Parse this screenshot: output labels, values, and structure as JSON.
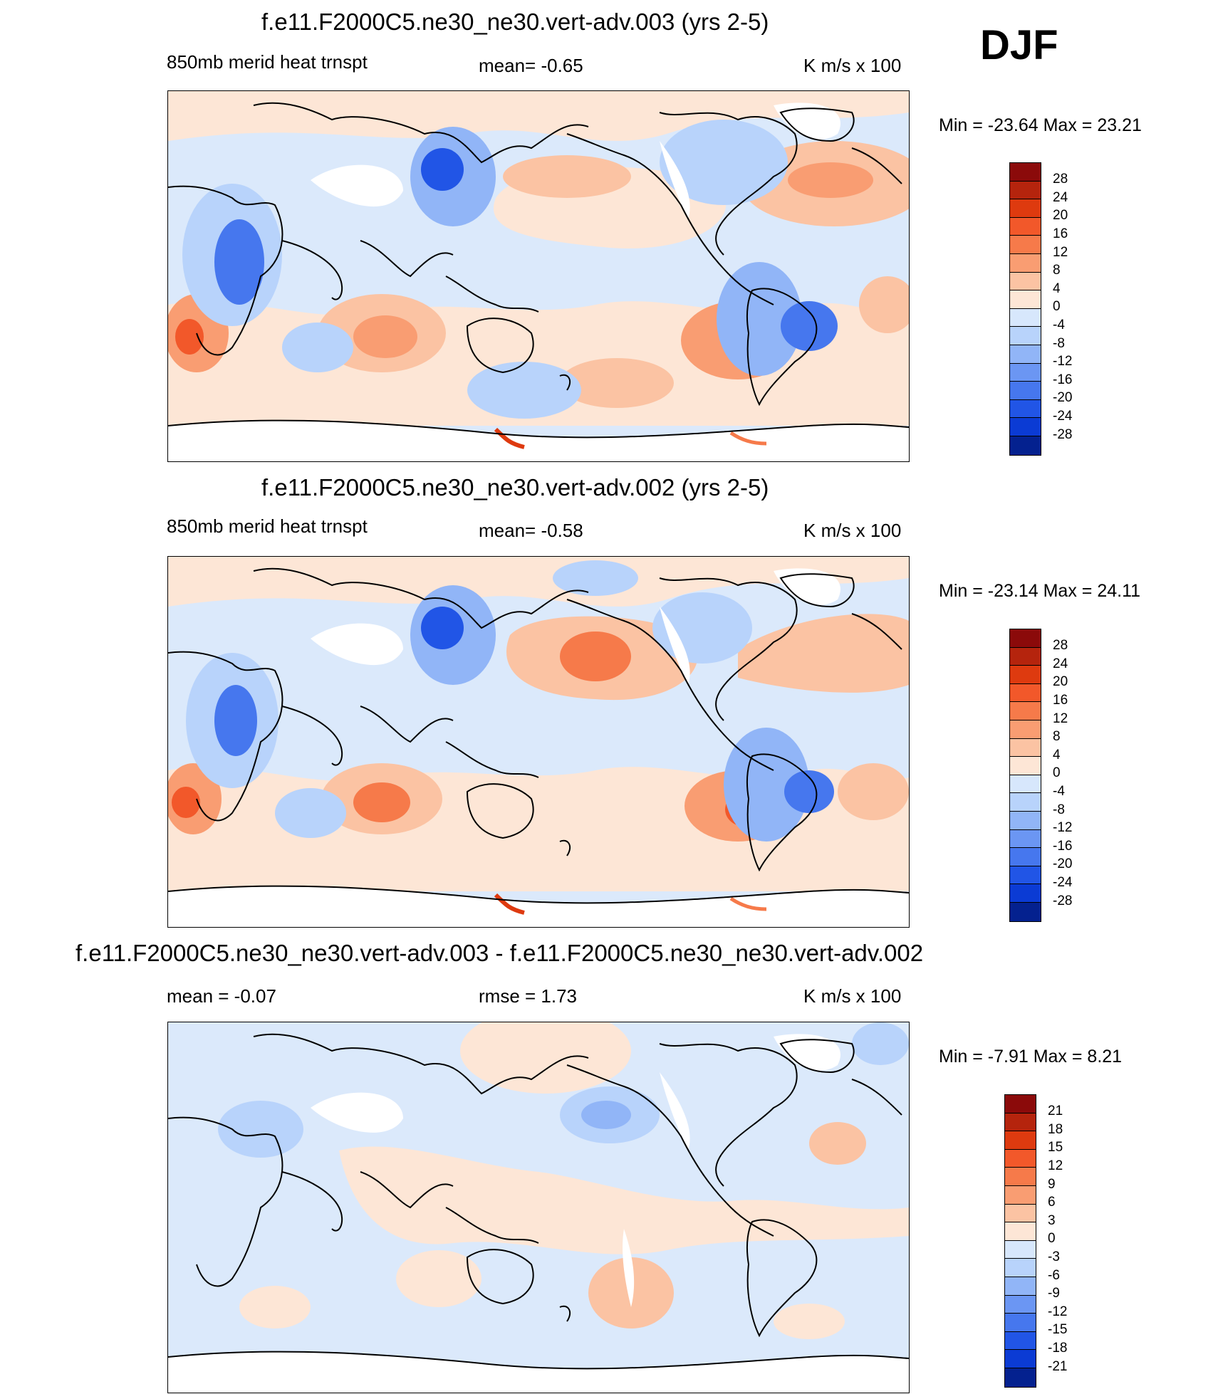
{
  "season": "DJF",
  "panels": [
    {
      "title": "f.e11.F2000C5.ne30_ne30.vert-adv.003 (yrs 2-5)",
      "left_label": "850mb merid heat trnspt",
      "center_label": "mean=  -0.65",
      "right_label": "K m/s x 100",
      "minmax": "Min = -23.64 Max =  23.21",
      "colorbar": {
        "labels": [
          "28",
          "24",
          "20",
          "16",
          "12",
          "8",
          "4",
          "0",
          "-4",
          "-8",
          "-12",
          "-16",
          "-20",
          "-24",
          "-28"
        ],
        "colors": [
          "#8b0a0a",
          "#b5240d",
          "#de3a0f",
          "#f2582a",
          "#f67a4a",
          "#f99d72",
          "#fbc3a3",
          "#fde6d6",
          "#d7e7fc",
          "#b8d3fb",
          "#91b5f7",
          "#6b96f3",
          "#4677ee",
          "#2155e6",
          "#0b3bd4",
          "#04218f"
        ]
      }
    },
    {
      "title": "f.e11.F2000C5.ne30_ne30.vert-adv.002 (yrs 2-5)",
      "left_label": "850mb merid heat trnspt",
      "center_label": "mean=  -0.58",
      "right_label": "K m/s x 100",
      "minmax": "Min = -23.14 Max =  24.11",
      "colorbar": {
        "labels": [
          "28",
          "24",
          "20",
          "16",
          "12",
          "8",
          "4",
          "0",
          "-4",
          "-8",
          "-12",
          "-16",
          "-20",
          "-24",
          "-28"
        ],
        "colors": [
          "#8b0a0a",
          "#b5240d",
          "#de3a0f",
          "#f2582a",
          "#f67a4a",
          "#f99d72",
          "#fbc3a3",
          "#fde6d6",
          "#d7e7fc",
          "#b8d3fb",
          "#91b5f7",
          "#6b96f3",
          "#4677ee",
          "#2155e6",
          "#0b3bd4",
          "#04218f"
        ]
      }
    },
    {
      "title": "f.e11.F2000C5.ne30_ne30.vert-adv.003 - f.e11.F2000C5.ne30_ne30.vert-adv.002",
      "left_label": "mean =  -0.07",
      "center_label": "rmse =   1.73",
      "right_label": "K m/s x 100",
      "minmax": "Min =  -7.91 Max =   8.21",
      "colorbar": {
        "labels": [
          "21",
          "18",
          "15",
          "12",
          "9",
          "6",
          "3",
          "0",
          "-3",
          "-6",
          "-9",
          "-12",
          "-15",
          "-18",
          "-21"
        ],
        "colors": [
          "#8b0a0a",
          "#b5240d",
          "#de3a0f",
          "#f2582a",
          "#f67a4a",
          "#f99d72",
          "#fbc3a3",
          "#fde6d6",
          "#d7e7fc",
          "#b8d3fb",
          "#91b5f7",
          "#6b96f3",
          "#4677ee",
          "#2155e6",
          "#0b3bd4",
          "#04218f"
        ]
      }
    }
  ]
}
